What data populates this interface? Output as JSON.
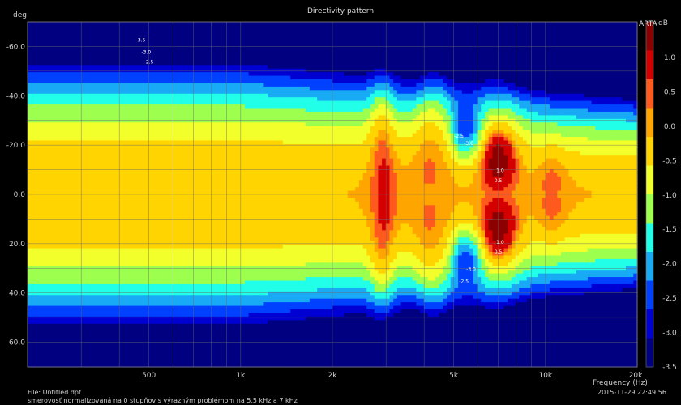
{
  "chart_data": {
    "type": "heatmap",
    "title": "Directivity pattern",
    "ylabel": "deg",
    "xlabel": "Frequency (Hz)",
    "x_scale": "log",
    "xlim": [
      200,
      20000
    ],
    "ylim": [
      -70,
      70
    ],
    "x_ticks": [
      {
        "value": 500,
        "label": "500"
      },
      {
        "value": 1000,
        "label": "1k"
      },
      {
        "value": 2000,
        "label": "2k"
      },
      {
        "value": 5000,
        "label": "5k"
      },
      {
        "value": 10000,
        "label": "10k"
      },
      {
        "value": 20000,
        "label": "20k"
      }
    ],
    "y_ticks": [
      {
        "value": -60,
        "label": "-60.0"
      },
      {
        "value": -40,
        "label": "-40.0"
      },
      {
        "value": -20,
        "label": "-20.0"
      },
      {
        "value": 0,
        "label": "0.0"
      },
      {
        "value": 20,
        "label": "20.0"
      },
      {
        "value": 40,
        "label": "40.0"
      },
      {
        "value": 60,
        "label": "60.0"
      }
    ],
    "colorbar": {
      "unit": "dB",
      "ticks": [
        "1.0",
        "0.5",
        "0.0",
        "-0.5",
        "-1.0",
        "-1.5",
        "-2.0",
        "-2.5",
        "-3.0",
        "-3.5"
      ],
      "colors": [
        "#8b0000",
        "#d40000",
        "#ff5a1e",
        "#ffa500",
        "#ffd400",
        "#f2ff2a",
        "#9dff4e",
        "#22ffe8",
        "#19aaf5",
        "#0041ff",
        "#0000d2",
        "#000080"
      ]
    },
    "level_colors": [
      {
        "level": 1.0,
        "color": "#8b0000"
      },
      {
        "level": 0.5,
        "color": "#d40000"
      },
      {
        "level": 0.25,
        "color": "#ff5a1e"
      },
      {
        "level": 0.0,
        "color": "#ffa500"
      },
      {
        "level": -0.5,
        "color": "#ffd400"
      },
      {
        "level": -1.0,
        "color": "#f2ff2a"
      },
      {
        "level": -1.5,
        "color": "#9dff4e"
      },
      {
        "level": -2.0,
        "color": "#22ffe8"
      },
      {
        "level": -2.5,
        "color": "#19aaf5"
      },
      {
        "level": -3.0,
        "color": "#0041ff"
      },
      {
        "level": -3.5,
        "color": "#0000d2"
      },
      {
        "level": -99,
        "color": "#000080"
      }
    ],
    "annotations": [
      {
        "text": "-3.5",
        "freq": 470,
        "angle": -62
      },
      {
        "text": "-3.0",
        "freq": 490,
        "angle": -57
      },
      {
        "text": "-2.5",
        "freq": 500,
        "angle": -53
      },
      {
        "text": "-2.5",
        "freq": 5200,
        "angle": -23
      },
      {
        "text": "-3.0",
        "freq": 5600,
        "angle": -20
      },
      {
        "text": "1.0",
        "freq": 7100,
        "angle": -9
      },
      {
        "text": "0.5",
        "freq": 7000,
        "angle": -5
      },
      {
        "text": "1.0",
        "freq": 7100,
        "angle": 20
      },
      {
        "text": "0.5",
        "freq": 7000,
        "angle": 24
      },
      {
        "text": "-3.0",
        "freq": 5700,
        "angle": 31
      },
      {
        "text": "-2.5",
        "freq": 5400,
        "angle": 36
      }
    ],
    "grid": true,
    "legend": "colorbar-right"
  },
  "meta": {
    "arta_label": "ARTA",
    "file_text": "File: Untitled.dpf",
    "note_text": "smerovosť normalizovaná na 0 stupňov s výrazným problémom na 5,5 kHz a 7 kHz",
    "timestamp": "2015-11-29  22:49:56"
  }
}
